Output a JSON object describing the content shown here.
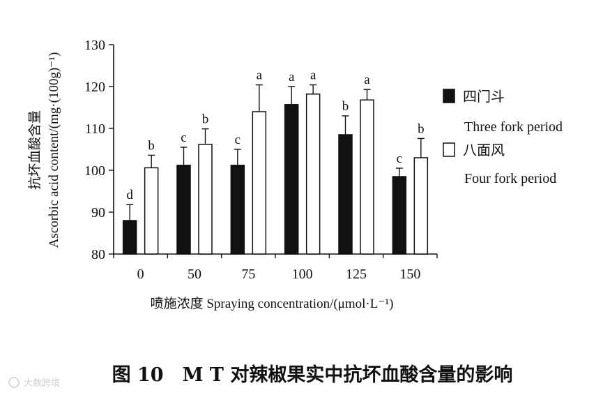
{
  "chart_data": {
    "type": "bar",
    "categories": [
      "0",
      "50",
      "75",
      "100",
      "125",
      "150"
    ],
    "series": [
      {
        "name_cn": "四门斗",
        "name_en": "Three fork period",
        "color": "#111111",
        "values": [
          88.0,
          101.2,
          101.2,
          115.7,
          108.5,
          98.5
        ],
        "errors": [
          3.8,
          4.3,
          3.8,
          4.3,
          4.5,
          2.0
        ],
        "letters": [
          "d",
          "c",
          "c",
          "a",
          "b",
          "c"
        ]
      },
      {
        "name_cn": "八面风",
        "name_en": "Four fork period",
        "color": "#ffffff",
        "values": [
          100.6,
          106.2,
          114.0,
          118.2,
          116.8,
          103.0
        ],
        "errors": [
          3.0,
          3.7,
          6.4,
          2.2,
          2.5,
          4.6
        ],
        "letters": [
          "b",
          "b",
          "a",
          "a",
          "a",
          "b"
        ]
      }
    ],
    "ylim": [
      80,
      130
    ],
    "yticks": [
      "80",
      "90",
      "100",
      "110",
      "120",
      "130"
    ],
    "ylabel_cn": "抗坏血酸含量",
    "ylabel_en": "Ascorbic acid content/(mg·(100g)⁻¹)",
    "xlabel": "喷施浓度 Spraying concentration/(μmol·L⁻¹)",
    "legend_position": "right",
    "grid": false
  },
  "caption": "图 10　M T 对辣椒果实中抗坏血酸含量的影响",
  "watermark": "大数跨境"
}
